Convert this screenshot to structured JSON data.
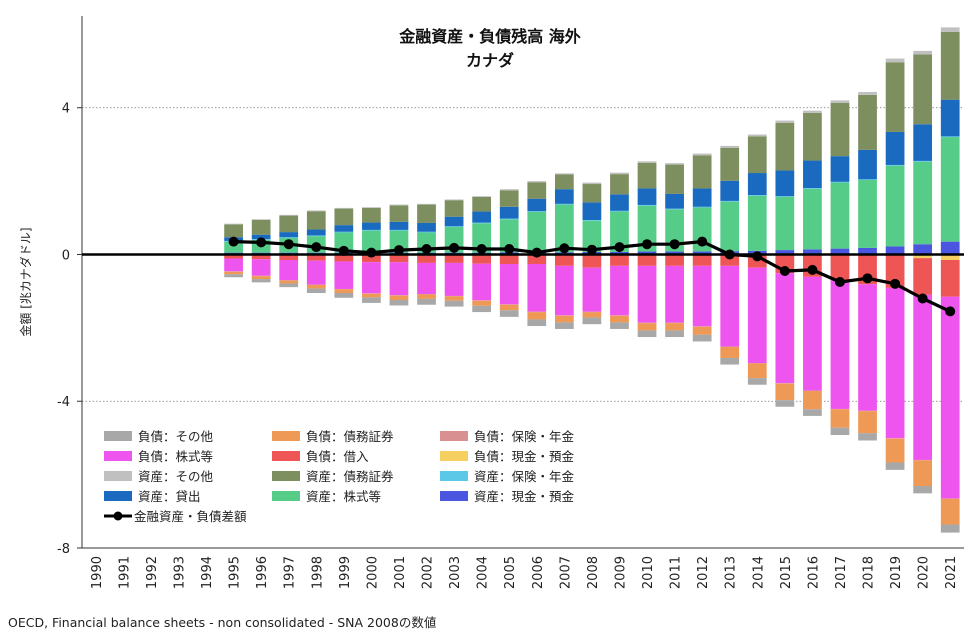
{
  "chart_data": {
    "type": "bar",
    "stacked": true,
    "title": "金融資産・負債残高 海外",
    "subtitle": "カナダ",
    "ylabel": "金額 [兆カナダドル]",
    "xlabel": "",
    "ylim": [
      -8,
      6.5
    ],
    "yticks": [
      4,
      0,
      -4,
      -8
    ],
    "yticklabels": [
      "4",
      "0",
      "-4",
      "-8"
    ],
    "categories": [
      "1990",
      "1991",
      "1992",
      "1993",
      "1994",
      "1995",
      "1996",
      "1997",
      "1998",
      "1999",
      "2000",
      "2001",
      "2002",
      "2003",
      "2004",
      "2005",
      "2006",
      "2007",
      "2008",
      "2009",
      "2010",
      "2011",
      "2012",
      "2013",
      "2014",
      "2015",
      "2016",
      "2017",
      "2018",
      "2019",
      "2020",
      "2021"
    ],
    "asset_series": [
      {
        "name": "資産：現金・預金",
        "color": "#4a55e0",
        "values": [
          null,
          null,
          null,
          null,
          null,
          0.05,
          0.05,
          0.05,
          0.05,
          0.05,
          0.05,
          0.05,
          0.05,
          0.05,
          0.05,
          0.06,
          0.06,
          0.06,
          0.07,
          0.07,
          0.08,
          0.08,
          0.08,
          0.09,
          0.1,
          0.12,
          0.14,
          0.16,
          0.18,
          0.22,
          0.28,
          0.35
        ]
      },
      {
        "name": "資産：株式等",
        "color": "#55cc88",
        "values": [
          null,
          null,
          null,
          null,
          null,
          0.3,
          0.35,
          0.4,
          0.45,
          0.55,
          0.6,
          0.6,
          0.55,
          0.7,
          0.8,
          0.9,
          1.1,
          1.3,
          0.85,
          1.1,
          1.25,
          1.15,
          1.2,
          1.35,
          1.5,
          1.45,
          1.65,
          1.8,
          1.85,
          2.2,
          2.25,
          2.85
        ]
      },
      {
        "name": "資産：保険・年金",
        "color": "#5bc8e8",
        "values": [
          null,
          null,
          null,
          null,
          null,
          0.02,
          0.02,
          0.02,
          0.02,
          0.02,
          0.02,
          0.02,
          0.02,
          0.02,
          0.02,
          0.02,
          0.02,
          0.02,
          0.02,
          0.02,
          0.02,
          0.02,
          0.02,
          0.02,
          0.02,
          0.02,
          0.02,
          0.02,
          0.02,
          0.02,
          0.02,
          0.02
        ]
      },
      {
        "name": "資産：貸出",
        "color": "#1a6bbf",
        "values": [
          null,
          null,
          null,
          null,
          null,
          0.1,
          0.12,
          0.14,
          0.16,
          0.18,
          0.2,
          0.22,
          0.24,
          0.26,
          0.3,
          0.32,
          0.34,
          0.4,
          0.48,
          0.45,
          0.45,
          0.4,
          0.5,
          0.55,
          0.6,
          0.7,
          0.75,
          0.7,
          0.8,
          0.9,
          1.0,
          1.0
        ]
      },
      {
        "name": "資産：債務証券",
        "color": "#7d8f5e",
        "values": [
          null,
          null,
          null,
          null,
          null,
          0.35,
          0.4,
          0.45,
          0.5,
          0.45,
          0.4,
          0.45,
          0.5,
          0.45,
          0.4,
          0.45,
          0.45,
          0.4,
          0.5,
          0.55,
          0.7,
          0.8,
          0.9,
          0.9,
          1.0,
          1.3,
          1.3,
          1.45,
          1.5,
          1.9,
          1.9,
          1.85
        ]
      },
      {
        "name": "資産：その他",
        "color": "#c0c0c0",
        "values": [
          null,
          null,
          null,
          null,
          null,
          0.02,
          0.02,
          0.02,
          0.02,
          0.02,
          0.02,
          0.02,
          0.02,
          0.02,
          0.02,
          0.03,
          0.03,
          0.03,
          0.04,
          0.04,
          0.04,
          0.04,
          0.05,
          0.05,
          0.05,
          0.06,
          0.06,
          0.07,
          0.08,
          0.1,
          0.1,
          0.12
        ]
      }
    ],
    "liability_series": [
      {
        "name": "負債：現金・預金",
        "color": "#f5d060",
        "values": [
          null,
          null,
          null,
          null,
          null,
          -0.01,
          -0.01,
          -0.01,
          -0.01,
          -0.01,
          -0.01,
          -0.01,
          -0.01,
          -0.01,
          -0.01,
          -0.01,
          -0.01,
          -0.01,
          -0.01,
          -0.01,
          -0.01,
          -0.01,
          -0.01,
          -0.01,
          -0.01,
          -0.01,
          -0.01,
          -0.01,
          -0.01,
          -0.01,
          -0.1,
          -0.15
        ]
      },
      {
        "name": "負債：借入",
        "color": "#ee5555",
        "values": [
          null,
          null,
          null,
          null,
          null,
          -0.1,
          -0.12,
          -0.14,
          -0.16,
          -0.18,
          -0.2,
          -0.2,
          -0.22,
          -0.22,
          -0.24,
          -0.25,
          -0.25,
          -0.3,
          -0.35,
          -0.3,
          -0.3,
          -0.3,
          -0.3,
          -0.3,
          -0.35,
          -0.5,
          -0.6,
          -0.7,
          -0.8,
          -0.9,
          -1.0,
          -1.0
        ]
      },
      {
        "name": "負債：株式等",
        "color": "#ee55ee",
        "values": [
          null,
          null,
          null,
          null,
          null,
          -0.35,
          -0.45,
          -0.55,
          -0.65,
          -0.75,
          -0.85,
          -0.9,
          -0.85,
          -0.9,
          -1.0,
          -1.1,
          -1.3,
          -1.35,
          -1.2,
          -1.35,
          -1.55,
          -1.55,
          -1.65,
          -2.2,
          -2.6,
          -3.0,
          -3.1,
          -3.5,
          -3.45,
          -4.1,
          -4.5,
          -5.5
        ]
      },
      {
        "name": "負債：保険・年金",
        "color": "#d99090",
        "values": [
          null,
          null,
          null,
          null,
          null,
          -0.01,
          -0.01,
          -0.01,
          -0.01,
          -0.01,
          -0.01,
          -0.01,
          -0.01,
          -0.01,
          -0.01,
          -0.01,
          -0.01,
          -0.01,
          -0.01,
          -0.01,
          -0.01,
          -0.01,
          -0.01,
          -0.01,
          -0.01,
          -0.01,
          -0.01,
          -0.01,
          -0.01,
          -0.01,
          -0.01,
          -0.01
        ]
      },
      {
        "name": "負債：債務証券",
        "color": "#ee9955",
        "values": [
          null,
          null,
          null,
          null,
          null,
          -0.07,
          -0.08,
          -0.08,
          -0.1,
          -0.1,
          -0.1,
          -0.12,
          -0.12,
          -0.12,
          -0.14,
          -0.15,
          -0.2,
          -0.18,
          -0.15,
          -0.18,
          -0.2,
          -0.2,
          -0.22,
          -0.3,
          -0.4,
          -0.45,
          -0.5,
          -0.5,
          -0.6,
          -0.65,
          -0.7,
          -0.7
        ]
      },
      {
        "name": "負債：その他",
        "color": "#a8a8a8",
        "values": [
          null,
          null,
          null,
          null,
          null,
          -0.08,
          -0.09,
          -0.1,
          -0.12,
          -0.13,
          -0.15,
          -0.15,
          -0.16,
          -0.16,
          -0.17,
          -0.18,
          -0.18,
          -0.18,
          -0.18,
          -0.18,
          -0.18,
          -0.18,
          -0.18,
          -0.18,
          -0.18,
          -0.18,
          -0.18,
          -0.2,
          -0.2,
          -0.2,
          -0.2,
          -0.22
        ]
      }
    ],
    "line_series": {
      "name": "金融資産・負債差額",
      "color": "#000000",
      "values": [
        null,
        null,
        null,
        null,
        null,
        0.35,
        0.33,
        0.28,
        0.2,
        0.1,
        0.05,
        0.12,
        0.15,
        0.18,
        0.15,
        0.15,
        0.05,
        0.17,
        0.13,
        0.2,
        0.28,
        0.28,
        0.35,
        0.0,
        -0.05,
        -0.45,
        -0.42,
        -0.75,
        -0.65,
        -0.8,
        -1.2,
        -1.55
      ]
    },
    "legend": [
      [
        "負債：その他",
        "負債：債務証券",
        "負債：保険・年金"
      ],
      [
        "負債：株式等",
        "負債：借入",
        "負債：現金・預金"
      ],
      [
        "資産：その他",
        "資産：債務証券",
        "資産：保険・年金"
      ],
      [
        "資産：貸出",
        "資産：株式等",
        "資産：現金・預金"
      ],
      [
        "金融資産・負債差額"
      ]
    ],
    "legend_position": "bottom-left",
    "grid": "horizontal-dotted"
  },
  "source_note": "OECD, Financial balance sheets - non consolidated - SNA 2008の数値"
}
